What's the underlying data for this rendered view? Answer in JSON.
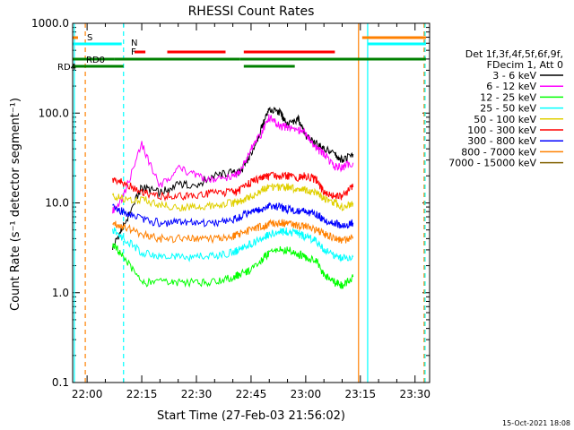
{
  "chart_data": {
    "type": "line",
    "title": "RHESSI Count Rates",
    "xlabel": "Start Time (27-Feb-03 21:56:02)",
    "ylabel": "Count Rate (s⁻¹ detector segment⁻¹)",
    "y_scale": "log",
    "ylim": [
      0.1,
      1000.0
    ],
    "y_ticks": [
      "0.1",
      "1.0",
      "10.0",
      "100.0",
      "1000.0"
    ],
    "x_range": [
      "21:56:02",
      "23:34:00"
    ],
    "x_ticks": [
      "22:00",
      "22:15",
      "22:30",
      "22:45",
      "23:00",
      "23:15",
      "23:30"
    ],
    "legend_header": [
      "Det 1f,3f,4f,5f,6f,9f,",
      "FDecim 1, Att 0"
    ],
    "legend_position": "right",
    "timestamp": "15-Oct-2021 18:08",
    "series": [
      {
        "name": "3 - 6 keV",
        "color": "#000000",
        "x": [
          "22:07",
          "22:10",
          "22:15",
          "22:20",
          "22:25",
          "22:30",
          "22:35",
          "22:40",
          "22:42",
          "22:45",
          "22:48",
          "22:50",
          "22:53",
          "22:55",
          "22:58",
          "23:00",
          "23:03",
          "23:05",
          "23:08",
          "23:10",
          "23:13"
        ],
        "y": [
          3.2,
          5.5,
          15,
          13,
          16,
          16,
          20,
          22,
          22,
          35,
          70,
          110,
          100,
          75,
          85,
          55,
          45,
          40,
          35,
          30,
          35
        ]
      },
      {
        "name": "6 - 12 keV",
        "color": "#ff00ff",
        "x": [
          "22:07",
          "22:10",
          "22:15",
          "22:20",
          "22:25",
          "22:30",
          "22:35",
          "22:40",
          "22:42",
          "22:45",
          "22:48",
          "22:50",
          "22:53",
          "22:55",
          "22:58",
          "23:00",
          "23:03",
          "23:05",
          "23:08",
          "23:10",
          "23:13"
        ],
        "y": [
          8,
          12,
          45,
          15,
          25,
          20,
          18,
          20,
          22,
          40,
          60,
          90,
          70,
          70,
          65,
          60,
          40,
          35,
          25,
          25,
          28
        ]
      },
      {
        "name": "12 - 25 keV",
        "color": "#00ff00",
        "x": [
          "22:07",
          "22:10",
          "22:15",
          "22:20",
          "22:25",
          "22:30",
          "22:35",
          "22:40",
          "22:42",
          "22:45",
          "22:48",
          "22:50",
          "22:53",
          "22:55",
          "22:58",
          "23:00",
          "23:03",
          "23:05",
          "23:08",
          "23:10",
          "23:13"
        ],
        "y": [
          3.5,
          2.5,
          1.3,
          1.3,
          1.3,
          1.3,
          1.3,
          1.5,
          1.6,
          1.8,
          2.3,
          2.8,
          3.0,
          3.0,
          2.7,
          2.5,
          2.2,
          1.6,
          1.3,
          1.2,
          1.5
        ]
      },
      {
        "name": "25 - 50 keV",
        "color": "#00ffff",
        "x": [
          "22:07",
          "22:10",
          "22:15",
          "22:20",
          "22:25",
          "22:30",
          "22:35",
          "22:40",
          "22:42",
          "22:45",
          "22:48",
          "22:50",
          "22:53",
          "22:55",
          "22:58",
          "23:00",
          "23:03",
          "23:05",
          "23:08",
          "23:10",
          "23:13"
        ],
        "y": [
          5,
          4,
          2.8,
          2.5,
          2.5,
          2.5,
          2.6,
          2.8,
          3.0,
          3.5,
          4.0,
          4.5,
          4.8,
          4.8,
          4.5,
          4.2,
          3.8,
          3.0,
          2.6,
          2.4,
          2.5
        ]
      },
      {
        "name": "50 - 100 keV",
        "color": "#e0d000",
        "x": [
          "22:07",
          "22:10",
          "22:15",
          "22:20",
          "22:25",
          "22:30",
          "22:35",
          "22:40",
          "22:42",
          "22:45",
          "22:48",
          "22:50",
          "22:53",
          "22:55",
          "22:58",
          "23:00",
          "23:03",
          "23:05",
          "23:08",
          "23:10",
          "23:13"
        ],
        "y": [
          12,
          11,
          11,
          9.5,
          9,
          9,
          9.5,
          10,
          10.5,
          12,
          14,
          15,
          15,
          15,
          14,
          14,
          13,
          11,
          10,
          9,
          10
        ]
      },
      {
        "name": "100 - 300 keV",
        "color": "#ff0000",
        "x": [
          "22:07",
          "22:10",
          "22:15",
          "22:20",
          "22:25",
          "22:30",
          "22:35",
          "22:40",
          "22:42",
          "22:45",
          "22:48",
          "22:50",
          "22:53",
          "22:55",
          "22:58",
          "23:00",
          "23:03",
          "23:05",
          "23:08",
          "23:10",
          "23:13"
        ],
        "y": [
          18,
          17,
          13,
          12,
          12,
          12,
          13,
          13,
          14,
          17,
          19,
          20,
          20,
          20,
          19,
          20,
          18,
          13,
          12,
          12,
          15
        ]
      },
      {
        "name": "300 - 800 keV",
        "color": "#0000ff",
        "x": [
          "22:07",
          "22:10",
          "22:15",
          "22:20",
          "22:25",
          "22:30",
          "22:35",
          "22:40",
          "22:42",
          "22:45",
          "22:48",
          "22:50",
          "22:53",
          "22:55",
          "22:58",
          "23:00",
          "23:03",
          "23:05",
          "23:08",
          "23:10",
          "23:13"
        ],
        "y": [
          9,
          8,
          6.5,
          6,
          6,
          6,
          6,
          6.5,
          7,
          8,
          8.5,
          9,
          9,
          8.5,
          8,
          8,
          7.5,
          6.5,
          6,
          5.5,
          6
        ]
      },
      {
        "name": "800 - 7000 keV",
        "color": "#ff8000",
        "x": [
          "22:07",
          "22:10",
          "22:15",
          "22:20",
          "22:25",
          "22:30",
          "22:35",
          "22:40",
          "22:42",
          "22:45",
          "22:48",
          "22:50",
          "22:53",
          "22:55",
          "22:58",
          "23:00",
          "23:03",
          "23:05",
          "23:08",
          "23:10",
          "23:13"
        ],
        "y": [
          6,
          5.5,
          4.5,
          4,
          4,
          4,
          4,
          4.2,
          4.5,
          5,
          5.5,
          5.8,
          6,
          5.8,
          5.5,
          5.5,
          5,
          4.5,
          4,
          3.8,
          4.2
        ]
      },
      {
        "name": "7000 - 15000 keV",
        "color": "#806000",
        "x": [],
        "y": []
      }
    ],
    "annotations": [
      {
        "label": "S",
        "color": "#ff8000",
        "intervals": [
          [
            "21:56:02",
            "21:57:30"
          ],
          [
            "23:15:30",
            "23:33:00"
          ]
        ]
      },
      {
        "label": "N",
        "color": "#00ffff",
        "intervals": [
          [
            "21:56:02",
            "22:09:30"
          ],
          [
            "23:17:00",
            "23:33:00"
          ]
        ]
      },
      {
        "label": "F",
        "color": "#ff0000",
        "intervals": [
          [
            "22:13:00",
            "22:16:00"
          ],
          [
            "22:22:00",
            "22:38:00"
          ],
          [
            "22:43:00",
            "23:08:00"
          ]
        ]
      },
      {
        "label": "RD0",
        "color": "#008000",
        "intervals": [
          [
            "21:56:02",
            "22:07:30"
          ],
          [
            "22:07:30",
            "22:42:00"
          ],
          [
            "22:42:00",
            "23:02:00"
          ],
          [
            "23:02:00",
            "23:33:00"
          ]
        ]
      },
      {
        "label": "RD4",
        "color": "#008000",
        "intervals": [
          [
            "21:56:02",
            "22:10:00"
          ],
          [
            "22:43:00",
            "22:57:00"
          ]
        ]
      }
    ],
    "vertical_markers": [
      {
        "time": "21:56:30",
        "color": "#00ffff",
        "style": "solid"
      },
      {
        "time": "21:59:30",
        "color": "#ff8000",
        "style": "dashed"
      },
      {
        "time": "22:10:00",
        "color": "#00ffff",
        "style": "dashed"
      },
      {
        "time": "23:14:30",
        "color": "#ff8000",
        "style": "solid"
      },
      {
        "time": "23:17:00",
        "color": "#00ffff",
        "style": "solid"
      },
      {
        "time": "23:32:30",
        "color": "#ff8000",
        "style": "dashed"
      },
      {
        "time": "23:32:45",
        "color": "#00ffff",
        "style": "dashed"
      }
    ]
  }
}
